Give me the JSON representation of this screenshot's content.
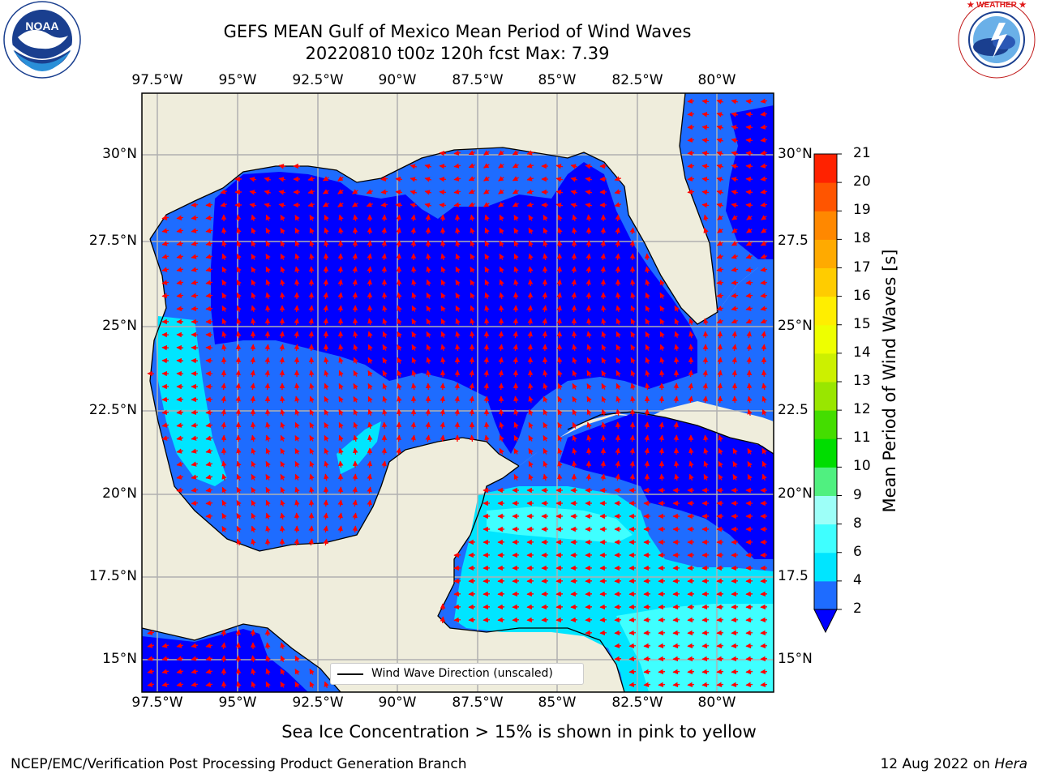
{
  "title_line1": "GEFS MEAN Gulf of Mexico Mean Period of Wind Waves",
  "title_line2": "20220810 t00z 120h fcst   Max: 7.39",
  "lon_labels": [
    "97.5°W",
    "95°W",
    "92.5°W",
    "90°W",
    "87.5°W",
    "85°W",
    "82.5°W",
    "80°W"
  ],
  "lat_labels_left": [
    "30°N",
    "27.5°N",
    "25°N",
    "22.5°N",
    "20°N",
    "17.5°N",
    "15°N"
  ],
  "lat_labels_right": [
    "30°N",
    "27.5",
    "25°N",
    "22.5",
    "20°N",
    "17.5",
    "15°N"
  ],
  "colorbar": {
    "label": "Mean Period of Wind Waves [s]",
    "ticks": [
      "2",
      "4",
      "6",
      "8",
      "9",
      "10",
      "11",
      "12",
      "13",
      "14",
      "15",
      "16",
      "17",
      "18",
      "19",
      "20",
      "21"
    ],
    "colors": [
      "#1e6cff",
      "#00e5ff",
      "#3fffff",
      "#9dfff8",
      "#50f080",
      "#00dd00",
      "#44dd00",
      "#99e600",
      "#ccf000",
      "#eeff00",
      "#ffee00",
      "#ffcc00",
      "#ffaa00",
      "#ff8800",
      "#ff5500",
      "#ff2200",
      "#ff0000"
    ],
    "extend_color": "#0000ff"
  },
  "legend_text": "Wind Wave Direction (unscaled)",
  "sea_ice_note": "Sea Ice Concentration > 15% is shown in pink to yellow",
  "footer_left": "NCEP/EMC/Verification Post Processing Product Generation Branch",
  "footer_right_prefix": "12 Aug 2022 on ",
  "footer_right_host": "Hera",
  "logo_left": "NOAA",
  "logo_left_ring": "NATIONAL OCEANIC AND ATMOSPHERIC ADMINISTRATION · U.S. DEPARTMENT OF COMMERCE",
  "logo_right_ring": "NATIONAL WEATHER SERVICE",
  "colors": {
    "land": "#efeddc",
    "deep": "#0000ff",
    "mid": "#1e6cff",
    "cyan": "#00e5ff",
    "light": "#3fffff",
    "arrow": "#ff0000",
    "grid": "#b0b0b0"
  }
}
